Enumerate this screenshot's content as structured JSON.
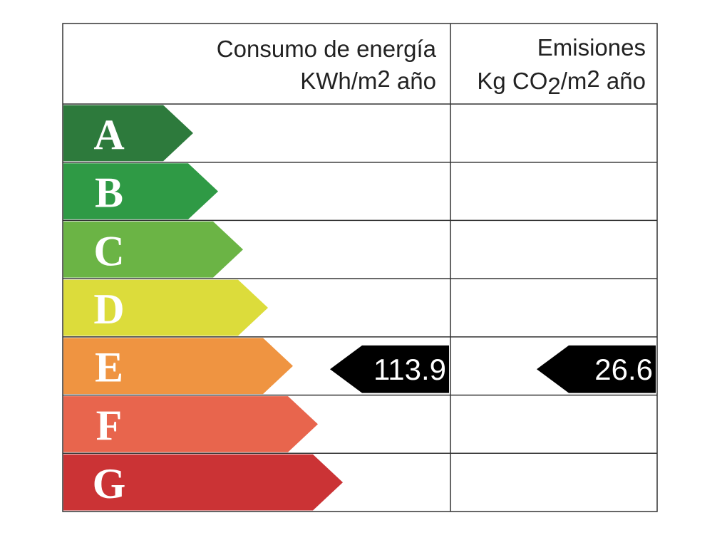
{
  "header": {
    "consumption": {
      "line1": "Consumo de energía",
      "line2": [
        "KWh/m",
        "2",
        " año"
      ]
    },
    "emissions": {
      "line1": "Emisiones",
      "line2": [
        "Kg CO",
        "2",
        "/m",
        "2",
        " año"
      ]
    }
  },
  "rows": [
    {
      "letter": "A",
      "color": "#2d7a3c"
    },
    {
      "letter": "B",
      "color": "#2f9a45"
    },
    {
      "letter": "C",
      "color": "#6bb445"
    },
    {
      "letter": "D",
      "color": "#dcdc3b"
    },
    {
      "letter": "E",
      "color": "#ef9441",
      "consumption": 113.9,
      "emissions": 26.6
    },
    {
      "letter": "F",
      "color": "#e8654d"
    },
    {
      "letter": "G",
      "color": "#cb3335"
    }
  ]
}
